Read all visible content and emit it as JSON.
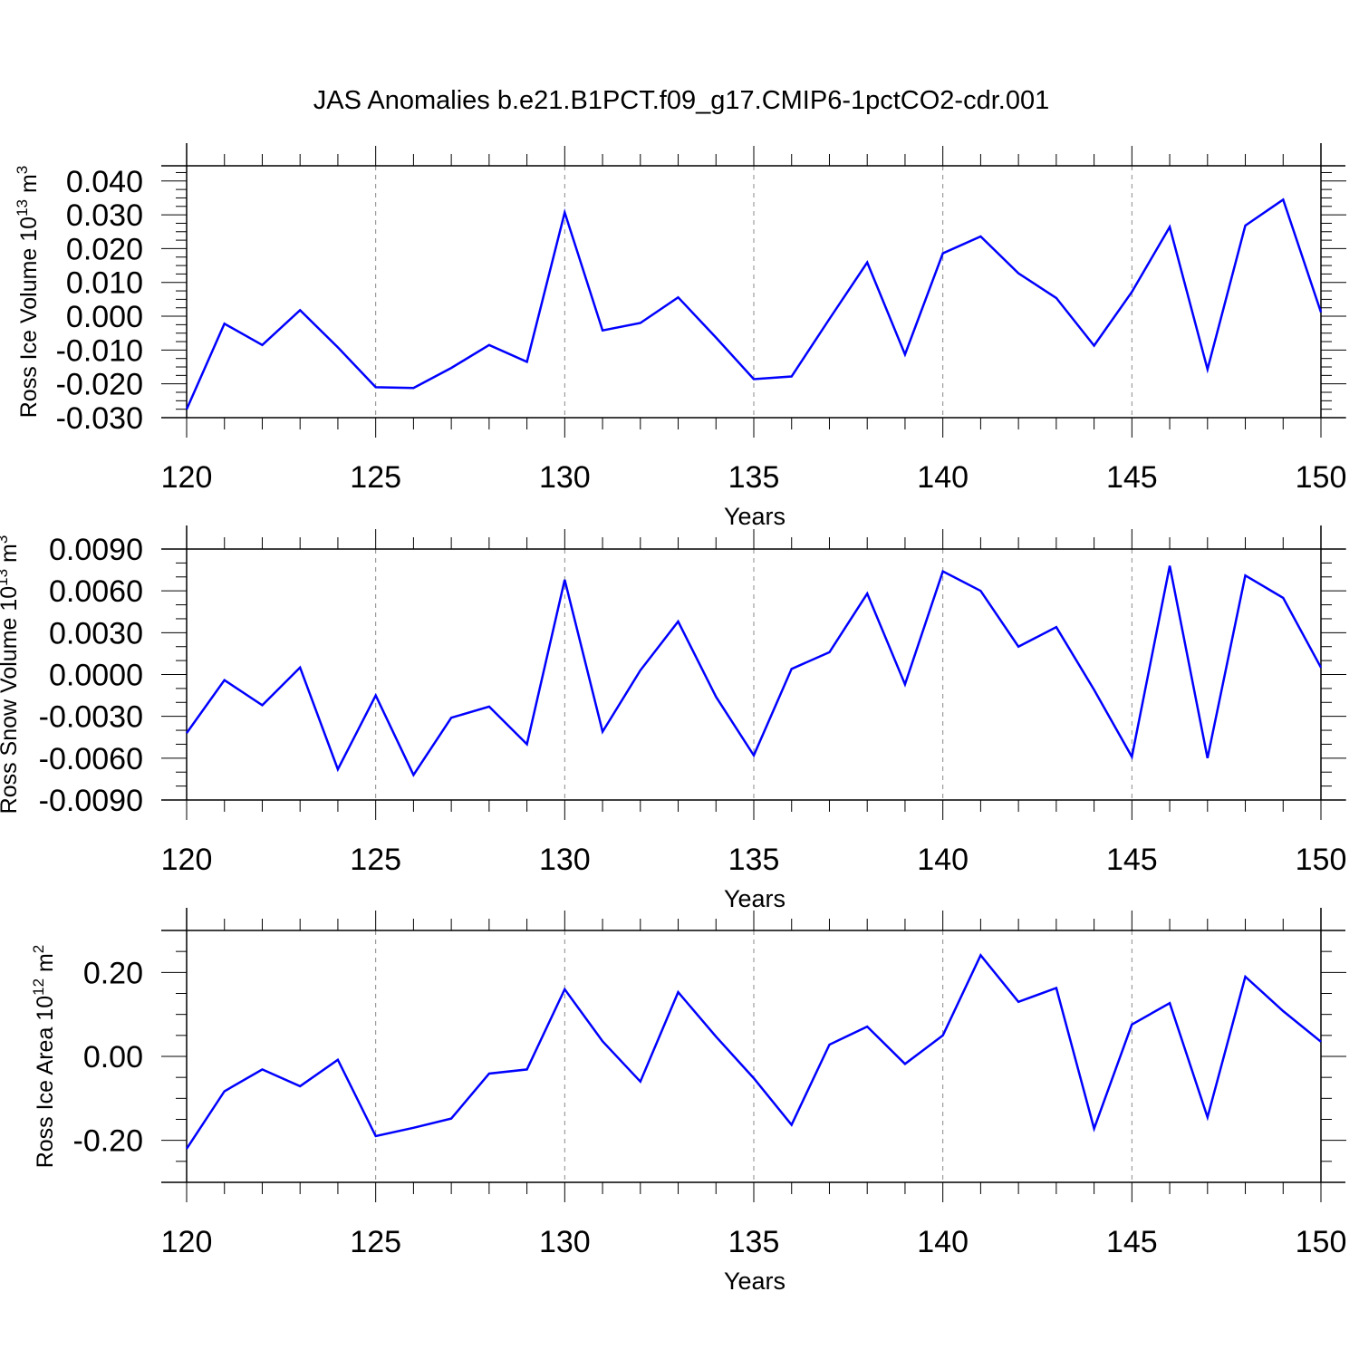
{
  "title": "JAS Anomalies b.e21.B1PCT.f09_g17.CMIP6-1pctCO2-cdr.001",
  "colors": {
    "line": "#0000ff",
    "axis": "#000000",
    "grid": "#888888"
  },
  "chart_data": [
    {
      "type": "line",
      "xlabel": "Years",
      "ylabel": {
        "text": "Ross Ice Volume 10",
        "exp": "13",
        "unit": " m",
        "unit_exp": "3"
      },
      "xlim": [
        120,
        150
      ],
      "ylim": [
        -0.03,
        0.0445
      ],
      "xticks": [
        120,
        125,
        130,
        135,
        140,
        145,
        150
      ],
      "xticklabels": [
        "120",
        "125",
        "130",
        "135",
        "140",
        "145",
        "150"
      ],
      "yticks": [
        -0.03,
        -0.02,
        -0.01,
        0.0,
        0.01,
        0.02,
        0.03,
        0.04
      ],
      "yticklabels": [
        "-0.030",
        "-0.020",
        "-0.010",
        "0.000",
        "0.010",
        "0.020",
        "0.030",
        "0.040"
      ],
      "yminor": 0.0025,
      "grid": "vertical-dashed",
      "x": [
        120,
        121,
        122,
        123,
        124,
        125,
        126,
        127,
        128,
        129,
        130,
        131,
        132,
        133,
        134,
        135,
        136,
        137,
        138,
        139,
        140,
        141,
        142,
        143,
        144,
        145,
        146,
        147,
        148,
        149,
        150
      ],
      "series": [
        {
          "values": [
            -0.0275,
            -0.0022,
            -0.0085,
            0.0018,
            -0.0092,
            -0.021,
            -0.0212,
            -0.0153,
            -0.0085,
            -0.0135,
            0.0307,
            -0.0042,
            -0.002,
            0.0056,
            -0.0063,
            -0.0186,
            -0.0178,
            -0.0008,
            0.0159,
            -0.0113,
            0.0186,
            0.0236,
            0.0127,
            0.0054,
            -0.0087,
            0.0072,
            0.0264,
            -0.0157,
            0.0268,
            0.0345,
            0.0012
          ]
        }
      ]
    },
    {
      "type": "line",
      "xlabel": "Years",
      "ylabel": {
        "text": "Ross Snow Volume 10",
        "exp": "13",
        "unit": " m",
        "unit_exp": "3"
      },
      "xlim": [
        120,
        150
      ],
      "ylim": [
        -0.009,
        0.009
      ],
      "xticks": [
        120,
        125,
        130,
        135,
        140,
        145,
        150
      ],
      "xticklabels": [
        "120",
        "125",
        "130",
        "135",
        "140",
        "145",
        "150"
      ],
      "yticks": [
        -0.009,
        -0.006,
        -0.003,
        0.0,
        0.003,
        0.006,
        0.009
      ],
      "yticklabels": [
        "-0.0090",
        "-0.0060",
        "-0.0030",
        "0.0000",
        "0.0030",
        "0.0060",
        "0.0090"
      ],
      "yminor": 0.001,
      "grid": "vertical-dashed",
      "x": [
        120,
        121,
        122,
        123,
        124,
        125,
        126,
        127,
        128,
        129,
        130,
        131,
        132,
        133,
        134,
        135,
        136,
        137,
        138,
        139,
        140,
        141,
        142,
        143,
        144,
        145,
        146,
        147,
        148,
        149,
        150
      ],
      "series": [
        {
          "values": [
            -0.0042,
            -0.0004,
            -0.0022,
            0.0005,
            -0.0068,
            -0.0015,
            -0.0072,
            -0.0031,
            -0.0023,
            -0.005,
            0.0068,
            -0.0041,
            0.0003,
            0.0038,
            -0.0016,
            -0.0058,
            0.0004,
            0.0016,
            0.0058,
            -0.0007,
            0.0074,
            0.006,
            0.002,
            0.0034,
            -0.0011,
            -0.0059,
            0.0078,
            -0.006,
            0.0071,
            0.0055,
            0.0005
          ]
        }
      ]
    },
    {
      "type": "line",
      "xlabel": "Years",
      "ylabel": {
        "text": "Ross Ice Area 10",
        "exp": "12",
        "unit": " m",
        "unit_exp": "2"
      },
      "xlim": [
        120,
        150
      ],
      "ylim": [
        -0.3,
        0.3
      ],
      "xticks": [
        120,
        125,
        130,
        135,
        140,
        145,
        150
      ],
      "xticklabels": [
        "120",
        "125",
        "130",
        "135",
        "140",
        "145",
        "150"
      ],
      "yticks": [
        -0.2,
        0.0,
        0.2
      ],
      "yticklabels": [
        "-0.20",
        "0.00",
        "0.20"
      ],
      "yminor": 0.05,
      "grid": "vertical-dashed",
      "x": [
        120,
        121,
        122,
        123,
        124,
        125,
        126,
        127,
        128,
        129,
        130,
        131,
        132,
        133,
        134,
        135,
        136,
        137,
        138,
        139,
        140,
        141,
        142,
        143,
        144,
        145,
        146,
        147,
        148,
        149,
        150
      ],
      "series": [
        {
          "values": [
            -0.22,
            -0.083,
            -0.031,
            -0.071,
            -0.008,
            -0.19,
            -0.17,
            -0.148,
            -0.041,
            -0.031,
            0.16,
            0.036,
            -0.06,
            0.153,
            0.047,
            -0.052,
            -0.163,
            0.028,
            0.071,
            -0.018,
            0.05,
            0.241,
            0.13,
            0.163,
            -0.172,
            0.076,
            0.127,
            -0.145,
            0.19,
            0.108,
            0.035
          ]
        }
      ]
    }
  ]
}
